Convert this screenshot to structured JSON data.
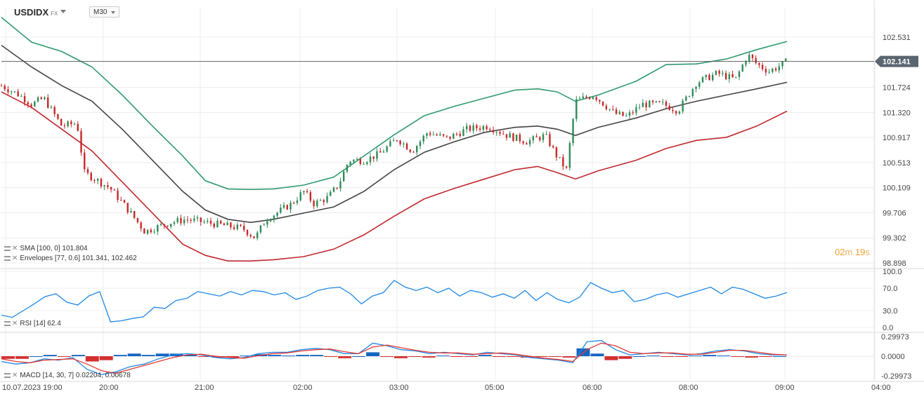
{
  "header": {
    "symbol": "USDIDX",
    "symbol_type": "FX",
    "timeframe": "M30"
  },
  "price_label": "102.141",
  "countdown": {
    "minutes": "02",
    "m": "m",
    "seconds": "19",
    "s": "s"
  },
  "indicators": {
    "sma": "SMA [100, 0] 101.804",
    "envelopes": "Envelopes [77, 0.6] 101.341, 102.462",
    "rsi": "RSI [14] 62.4",
    "macd": "MACD [14, 30, 7] 0.02204, 0.00678"
  },
  "colors": {
    "upper_envelope": "#2e9a6e",
    "lower_envelope": "#c0272d",
    "sma": "#444444",
    "rsi": "#1e88e5",
    "macd_line": "#1e88e5",
    "signal_line": "#e53935",
    "hist_pos": "#1565c0",
    "hist_neg": "#d32f2f"
  },
  "chart_data": [
    {
      "type": "candlestick",
      "title": "USDIDX",
      "price_axis_ticks": [
        "102.531",
        "101.724",
        "101.320",
        "100.917",
        "100.513",
        "100.109",
        "99.706",
        "99.302",
        "98.898"
      ],
      "price_axis_values": [
        102.531,
        101.724,
        101.32,
        100.917,
        100.513,
        100.109,
        99.706,
        99.302,
        98.898
      ],
      "time_axis_labels": [
        "10.07.2023 19:00",
        "20:00",
        "21:00",
        "02:00",
        "03:00",
        "05:00",
        "06:00",
        "08:00",
        "09:00",
        "04:00"
      ],
      "last_price": 102.141,
      "ylim": [
        98.898,
        102.85
      ],
      "close_path": [
        [
          0,
          101.75
        ],
        [
          12,
          101.6
        ],
        [
          20,
          101.45
        ],
        [
          28,
          101.55
        ],
        [
          40,
          101.1
        ],
        [
          50,
          101.15
        ],
        [
          55,
          100.35
        ],
        [
          62,
          100.25
        ],
        [
          72,
          100.1
        ],
        [
          84,
          99.75
        ],
        [
          95,
          99.4
        ],
        [
          100,
          99.45
        ],
        [
          112,
          99.55
        ],
        [
          122,
          99.6
        ],
        [
          135,
          99.55
        ],
        [
          148,
          99.5
        ],
        [
          160,
          99.45
        ],
        [
          168,
          99.3
        ],
        [
          175,
          99.6
        ],
        [
          182,
          99.7
        ],
        [
          192,
          99.85
        ],
        [
          200,
          100.05
        ],
        [
          207,
          99.85
        ],
        [
          216,
          99.95
        ],
        [
          223,
          100.15
        ],
        [
          230,
          100.55
        ],
        [
          240,
          100.55
        ],
        [
          250,
          100.65
        ],
        [
          262,
          100.9
        ],
        [
          272,
          100.7
        ],
        [
          282,
          101.0
        ],
        [
          295,
          100.9
        ],
        [
          308,
          101.05
        ],
        [
          322,
          101.1
        ],
        [
          335,
          100.95
        ],
        [
          348,
          100.85
        ],
        [
          360,
          100.95
        ],
        [
          368,
          100.6
        ],
        [
          374,
          100.4
        ],
        [
          380,
          101.5
        ],
        [
          392,
          101.6
        ],
        [
          406,
          101.3
        ],
        [
          414,
          101.25
        ],
        [
          424,
          101.45
        ],
        [
          438,
          101.45
        ],
        [
          448,
          101.35
        ],
        [
          460,
          101.8
        ],
        [
          474,
          101.95
        ],
        [
          486,
          101.85
        ],
        [
          494,
          102.25
        ],
        [
          500,
          102.1
        ],
        [
          508,
          101.98
        ],
        [
          516,
          102.08
        ],
        [
          520,
          102.141
        ]
      ],
      "sma_path": [
        [
          0,
          102.4
        ],
        [
          20,
          102.05
        ],
        [
          40,
          101.75
        ],
        [
          60,
          101.5
        ],
        [
          80,
          101.05
        ],
        [
          100,
          100.55
        ],
        [
          120,
          100.05
        ],
        [
          135,
          99.75
        ],
        [
          150,
          99.6
        ],
        [
          165,
          99.55
        ],
        [
          180,
          99.6
        ],
        [
          200,
          99.7
        ],
        [
          220,
          99.8
        ],
        [
          240,
          100.05
        ],
        [
          260,
          100.4
        ],
        [
          280,
          100.68
        ],
        [
          300,
          100.85
        ],
        [
          320,
          101.0
        ],
        [
          340,
          101.08
        ],
        [
          355,
          101.1
        ],
        [
          368,
          101.05
        ],
        [
          380,
          100.95
        ],
        [
          395,
          101.08
        ],
        [
          420,
          101.23
        ],
        [
          440,
          101.38
        ],
        [
          460,
          101.5
        ],
        [
          480,
          101.6
        ],
        [
          500,
          101.7
        ],
        [
          520,
          101.804
        ]
      ],
      "upper_envelope_path": [
        [
          0,
          102.85
        ],
        [
          20,
          102.45
        ],
        [
          40,
          102.3
        ],
        [
          60,
          102.05
        ],
        [
          80,
          101.6
        ],
        [
          100,
          101.1
        ],
        [
          120,
          100.62
        ],
        [
          135,
          100.22
        ],
        [
          150,
          100.09
        ],
        [
          165,
          100.08
        ],
        [
          180,
          100.09
        ],
        [
          200,
          100.15
        ],
        [
          220,
          100.28
        ],
        [
          240,
          100.62
        ],
        [
          260,
          100.96
        ],
        [
          280,
          101.27
        ],
        [
          300,
          101.42
        ],
        [
          320,
          101.55
        ],
        [
          340,
          101.68
        ],
        [
          355,
          101.7
        ],
        [
          368,
          101.65
        ],
        [
          380,
          101.5
        ],
        [
          395,
          101.6
        ],
        [
          420,
          101.82
        ],
        [
          440,
          102.09
        ],
        [
          460,
          102.1
        ],
        [
          480,
          102.18
        ],
        [
          500,
          102.33
        ],
        [
          520,
          102.462
        ]
      ],
      "lower_envelope_path": [
        [
          0,
          101.65
        ],
        [
          20,
          101.4
        ],
        [
          40,
          101.05
        ],
        [
          60,
          100.7
        ],
        [
          80,
          100.2
        ],
        [
          100,
          99.7
        ],
        [
          120,
          99.2
        ],
        [
          135,
          99.02
        ],
        [
          150,
          98.93
        ],
        [
          165,
          98.93
        ],
        [
          180,
          98.95
        ],
        [
          200,
          99.0
        ],
        [
          220,
          99.12
        ],
        [
          240,
          99.35
        ],
        [
          260,
          99.65
        ],
        [
          280,
          99.93
        ],
        [
          300,
          100.1
        ],
        [
          320,
          100.25
        ],
        [
          340,
          100.4
        ],
        [
          355,
          100.45
        ],
        [
          368,
          100.35
        ],
        [
          380,
          100.25
        ],
        [
          395,
          100.38
        ],
        [
          420,
          100.55
        ],
        [
          440,
          100.74
        ],
        [
          460,
          100.87
        ],
        [
          480,
          100.92
        ],
        [
          500,
          101.1
        ],
        [
          520,
          101.341
        ]
      ]
    },
    {
      "type": "line",
      "title": "RSI [14]",
      "y_ticks": [
        "100.0",
        "70.0",
        "30.0",
        "0.0"
      ],
      "ylim": [
        0,
        100
      ],
      "last_value": 62.4,
      "series": [
        {
          "values": [
            22,
            18,
            30,
            42,
            55,
            60,
            45,
            40,
            56,
            64,
            10,
            12,
            16,
            19,
            36,
            34,
            48,
            52,
            64,
            60,
            56,
            64,
            58,
            66,
            64,
            58,
            62,
            50,
            56,
            66,
            70,
            72,
            60,
            42,
            56,
            62,
            84,
            72,
            66,
            72,
            62,
            70,
            56,
            66,
            62,
            54,
            60,
            52,
            66,
            48,
            62,
            50,
            44,
            54,
            80,
            70,
            62,
            66,
            46,
            50,
            58,
            62,
            54,
            60,
            66,
            72,
            60,
            72,
            68,
            60,
            52,
            56,
            62.4
          ]
        }
      ]
    },
    {
      "type": "line",
      "title": "MACD [14, 30, 7]",
      "y_ticks": [
        "0.29973",
        "0.0000",
        "-0.29973"
      ],
      "ylim": [
        -0.29973,
        0.29973
      ],
      "last_values": [
        0.02204,
        0.00678
      ],
      "series": [
        {
          "values": [
            -0.08,
            -0.12,
            -0.1,
            -0.04,
            -0.06,
            -0.02,
            -0.2,
            -0.28,
            -0.24,
            -0.16,
            -0.12,
            -0.04,
            0.02,
            0.04,
            0.02,
            -0.02,
            -0.04,
            -0.02,
            0.04,
            0.06,
            0.06,
            0.1,
            0.12,
            0.1,
            0.04,
            0.04,
            0.2,
            0.16,
            0.1,
            0.08,
            0.04,
            0.06,
            0.04,
            0.02,
            0.06,
            0.04,
            0.02,
            -0.02,
            -0.04,
            -0.06,
            -0.1,
            0.22,
            0.24,
            0.1,
            0.02,
            0.04,
            0.06,
            0.04,
            0.02,
            0.04,
            0.08,
            0.1,
            0.08,
            0.04,
            0.02,
            0.02
          ]
        },
        {
          "values": [
            -0.04,
            -0.08,
            -0.1,
            -0.06,
            -0.05,
            -0.04,
            -0.12,
            -0.22,
            -0.26,
            -0.2,
            -0.14,
            -0.08,
            -0.02,
            0.02,
            0.03,
            0.0,
            -0.02,
            -0.03,
            0.01,
            0.04,
            0.05,
            0.08,
            0.1,
            0.11,
            0.07,
            0.04,
            0.14,
            0.17,
            0.13,
            0.09,
            0.06,
            0.05,
            0.05,
            0.03,
            0.04,
            0.05,
            0.03,
            0.0,
            -0.03,
            -0.05,
            -0.08,
            0.1,
            0.2,
            0.16,
            0.06,
            0.04,
            0.05,
            0.05,
            0.03,
            0.03,
            0.06,
            0.09,
            0.09,
            0.06,
            0.03,
            0.02
          ]
        }
      ],
      "histogram": [
        -0.04,
        -0.04,
        0.0,
        0.02,
        -0.01,
        0.02,
        -0.08,
        -0.06,
        0.02,
        0.04,
        0.02,
        0.04,
        0.04,
        0.02,
        -0.01,
        -0.02,
        -0.02,
        0.01,
        0.03,
        0.02,
        0.01,
        0.02,
        0.02,
        -0.01,
        -0.03,
        0.0,
        0.06,
        -0.01,
        -0.03,
        -0.01,
        -0.02,
        0.01,
        -0.01,
        -0.01,
        0.02,
        -0.01,
        -0.01,
        -0.02,
        -0.01,
        -0.01,
        -0.02,
        0.12,
        0.04,
        -0.06,
        -0.04,
        0.0,
        0.01,
        -0.01,
        -0.01,
        0.01,
        0.02,
        0.01,
        -0.01,
        -0.02,
        -0.01,
        0.0
      ]
    }
  ]
}
